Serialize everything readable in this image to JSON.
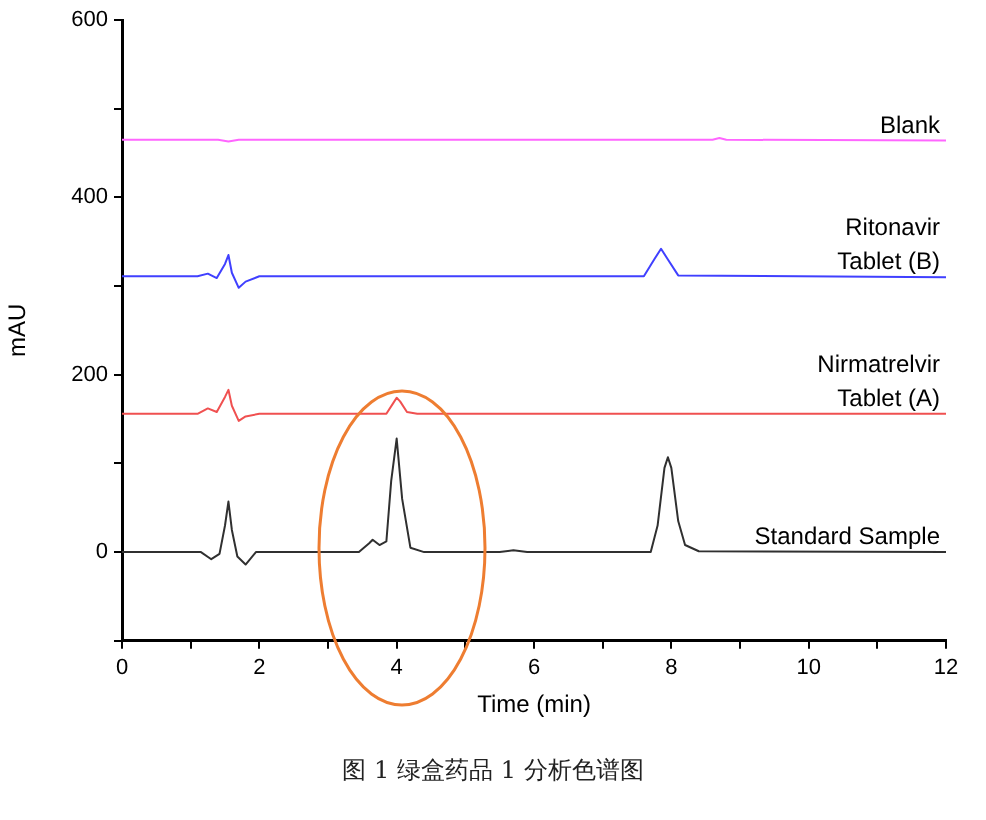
{
  "chart_data": {
    "type": "line",
    "xlabel": "Time (min)",
    "ylabel": "mAU",
    "xlim": [
      0,
      12
    ],
    "ylim": [
      -100,
      600
    ],
    "xticks": [
      0,
      {
        "value": 1,
        "label": null
      },
      2,
      {
        "value": 3,
        "label": null
      },
      4,
      {
        "value": 5,
        "label": null
      },
      6,
      {
        "value": 7,
        "label": null
      },
      8,
      {
        "value": 9,
        "label": null
      },
      10,
      {
        "value": 11,
        "label": null
      },
      12
    ],
    "yticks": [
      {
        "value": -100,
        "label": null
      },
      0,
      {
        "value": 100,
        "label": null
      },
      200,
      {
        "value": 300,
        "label": null
      },
      400,
      {
        "value": 500,
        "label": null
      },
      600
    ],
    "grid": false,
    "legend": false,
    "marker": "none",
    "line_style": "solid",
    "series": [
      {
        "name": "Blank",
        "color": "#ff66ff",
        "x": [
          0,
          1.4,
          1.55,
          1.7,
          8.6,
          8.7,
          8.8,
          12
        ],
        "values": [
          465,
          465,
          463,
          465,
          465,
          467,
          465,
          464
        ]
      },
      {
        "name": "Ritonavir Tablet (B)",
        "color": "#4040ff",
        "x": [
          0,
          1.1,
          1.25,
          1.38,
          1.5,
          1.55,
          1.6,
          1.7,
          1.8,
          2.0,
          7.6,
          7.75,
          7.85,
          7.95,
          8.1,
          12
        ],
        "values": [
          311,
          311,
          314,
          309,
          325,
          335,
          315,
          298,
          305,
          311,
          311,
          330,
          342,
          330,
          312,
          310
        ]
      },
      {
        "name": "Nirmatrelvir Tablet (A)",
        "color": "#f05050",
        "x": [
          0,
          1.1,
          1.25,
          1.38,
          1.5,
          1.55,
          1.6,
          1.7,
          1.8,
          2.0,
          3.85,
          3.95,
          4.0,
          4.05,
          4.15,
          4.3,
          12
        ],
        "values": [
          156,
          156,
          162,
          158,
          175,
          183,
          165,
          148,
          153,
          156,
          156,
          168,
          174,
          170,
          158,
          156,
          156
        ]
      },
      {
        "name": "Standard Sample",
        "color": "#303030",
        "x": [
          0,
          1.15,
          1.3,
          1.42,
          1.5,
          1.55,
          1.6,
          1.68,
          1.8,
          1.95,
          3.45,
          3.6,
          3.65,
          3.75,
          3.85,
          3.92,
          4.0,
          4.08,
          4.2,
          4.4,
          5.5,
          5.7,
          5.9,
          7.7,
          7.8,
          7.9,
          7.95,
          8.0,
          8.1,
          8.2,
          8.4,
          12
        ],
        "values": [
          0,
          0,
          -8,
          -2,
          30,
          57,
          25,
          -5,
          -14,
          0,
          0,
          10,
          14,
          8,
          12,
          80,
          128,
          60,
          5,
          0,
          0,
          2,
          0,
          0,
          30,
          95,
          107,
          95,
          35,
          8,
          1,
          0
        ]
      }
    ],
    "annotations": [
      "图 1  绿盒药品 1 分析色谱图"
    ]
  }
}
